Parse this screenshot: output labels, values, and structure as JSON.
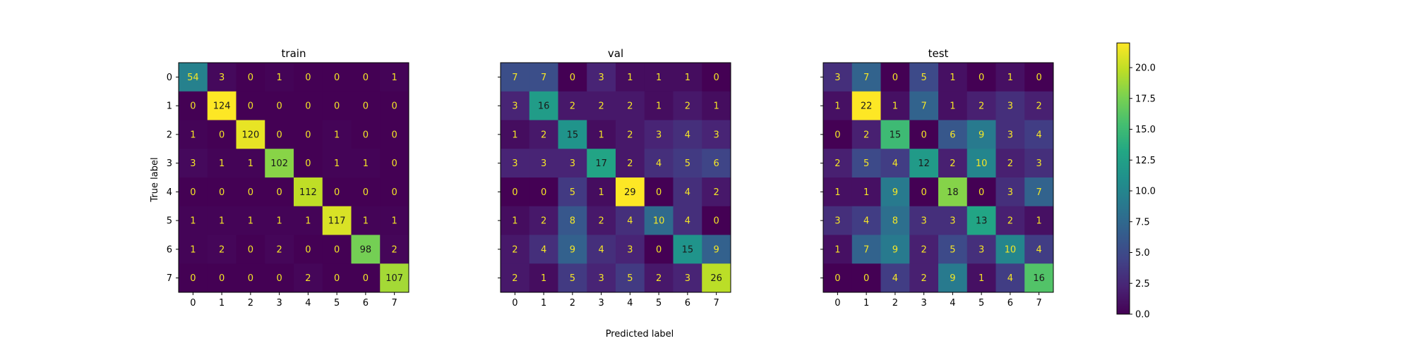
{
  "chart_data": {
    "type": "heatmap",
    "xlabel": "Predicted label",
    "ylabel": "True label",
    "tick_labels": [
      "0",
      "1",
      "2",
      "3",
      "4",
      "5",
      "6",
      "7"
    ],
    "color_scale": {
      "min": 0,
      "max": 22,
      "colormap": "viridis",
      "ticks": [
        "0.0",
        "2.5",
        "5.0",
        "7.5",
        "10.0",
        "12.5",
        "15.0",
        "17.5",
        "20.0"
      ],
      "tick_values": [
        0,
        2.5,
        5,
        7.5,
        10,
        12.5,
        15,
        17.5,
        20
      ]
    },
    "panels": [
      {
        "title": "train",
        "vmax": 124,
        "matrix": [
          [
            54,
            3,
            0,
            1,
            0,
            0,
            0,
            1
          ],
          [
            0,
            124,
            0,
            0,
            0,
            0,
            0,
            0
          ],
          [
            1,
            0,
            120,
            0,
            0,
            1,
            0,
            0
          ],
          [
            3,
            1,
            1,
            102,
            0,
            1,
            1,
            0
          ],
          [
            0,
            0,
            0,
            0,
            112,
            0,
            0,
            0
          ],
          [
            1,
            1,
            1,
            1,
            1,
            117,
            1,
            1
          ],
          [
            1,
            2,
            0,
            2,
            0,
            0,
            98,
            2
          ],
          [
            0,
            0,
            0,
            0,
            2,
            0,
            0,
            107
          ]
        ]
      },
      {
        "title": "val",
        "vmax": 29,
        "matrix": [
          [
            7,
            7,
            0,
            3,
            1,
            1,
            1,
            0
          ],
          [
            3,
            16,
            2,
            2,
            2,
            1,
            2,
            1
          ],
          [
            1,
            2,
            15,
            1,
            2,
            3,
            4,
            3
          ],
          [
            3,
            3,
            3,
            17,
            2,
            4,
            5,
            6
          ],
          [
            0,
            0,
            5,
            1,
            29,
            0,
            4,
            2
          ],
          [
            1,
            2,
            8,
            2,
            4,
            10,
            4,
            0
          ],
          [
            2,
            4,
            9,
            4,
            3,
            0,
            15,
            9
          ],
          [
            2,
            1,
            5,
            3,
            5,
            2,
            3,
            26
          ]
        ]
      },
      {
        "title": "test",
        "vmax": 22,
        "matrix": [
          [
            3,
            7,
            0,
            5,
            1,
            0,
            1,
            0
          ],
          [
            1,
            22,
            1,
            7,
            1,
            2,
            3,
            2
          ],
          [
            0,
            2,
            15,
            0,
            6,
            9,
            3,
            4
          ],
          [
            2,
            5,
            4,
            12,
            2,
            10,
            2,
            3
          ],
          [
            1,
            1,
            9,
            0,
            18,
            0,
            3,
            7
          ],
          [
            3,
            4,
            8,
            3,
            3,
            13,
            2,
            1
          ],
          [
            1,
            7,
            9,
            2,
            5,
            3,
            10,
            4
          ],
          [
            0,
            0,
            4,
            2,
            9,
            1,
            4,
            16
          ]
        ]
      }
    ]
  }
}
